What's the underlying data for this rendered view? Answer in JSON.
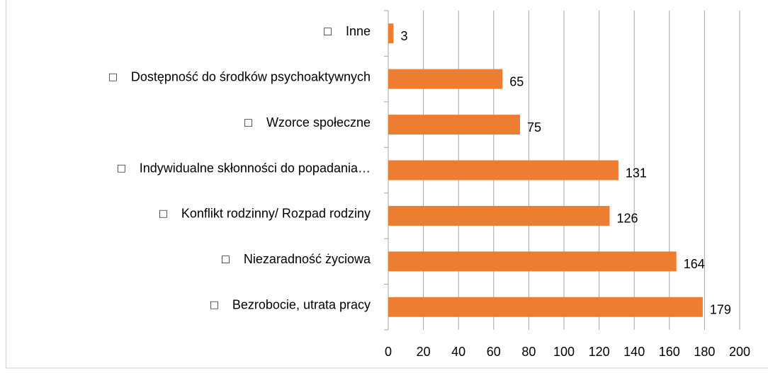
{
  "chart_data": {
    "type": "bar",
    "orientation": "horizontal",
    "categories": [
      "□    Bezrobocie, utrata pracy",
      "□    Niezaradność życiowa",
      "□    Konflikt rodzinny/ Rozpad rodziny",
      "□    Indywidualne skłonności do popadania…",
      "□    Wzorce społeczne",
      "□    Dostępność do środków psychoaktywnych",
      "□    Inne"
    ],
    "values": [
      179,
      164,
      126,
      131,
      75,
      65,
      3
    ],
    "color": "#ed7d31",
    "xlim": [
      0,
      200
    ],
    "xticks": [
      0,
      20,
      40,
      60,
      80,
      100,
      120,
      140,
      160,
      180,
      200
    ],
    "grid": true
  }
}
